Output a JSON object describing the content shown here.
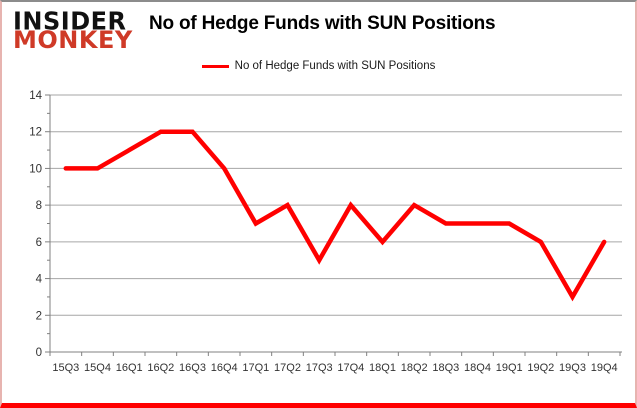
{
  "logo": {
    "line1": "INSIDER",
    "line2": "MONKEY"
  },
  "header": {
    "title": "No of Hedge Funds with SUN Positions"
  },
  "legend": {
    "label": "No of Hedge Funds with SUN Positions"
  },
  "colors": {
    "series": "#ff0000",
    "grid": "#a6a6a6",
    "axis": "#808080",
    "tick_label": "#333333",
    "logo_black": "#111111",
    "logo_red": "#cf3a27",
    "border_bottom": "#ff0000"
  },
  "chart_data": {
    "type": "line",
    "title": "No of Hedge Funds with SUN Positions",
    "categories": [
      "15Q3",
      "15Q4",
      "16Q1",
      "16Q2",
      "16Q3",
      "16Q4",
      "17Q1",
      "17Q2",
      "17Q3",
      "17Q4",
      "18Q1",
      "18Q2",
      "18Q3",
      "18Q4",
      "19Q1",
      "19Q2",
      "19Q3",
      "19Q4"
    ],
    "series": [
      {
        "name": "No of Hedge Funds with SUN Positions",
        "color": "#ff0000",
        "values": [
          10,
          10,
          11,
          12,
          12,
          10,
          7,
          8,
          5,
          8,
          6,
          8,
          7,
          7,
          7,
          6,
          3,
          6
        ]
      }
    ],
    "xlabel": "",
    "ylabel": "",
    "ylim": [
      0,
      14
    ],
    "ytick_step": 2,
    "grid": true,
    "legend_position": "top"
  }
}
